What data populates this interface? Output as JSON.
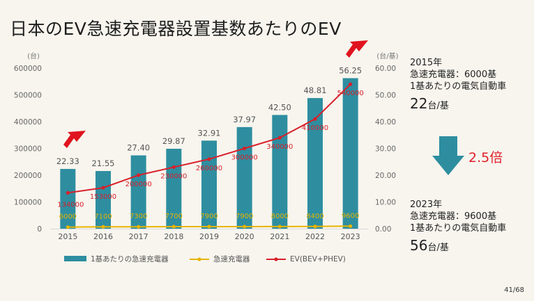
{
  "title": "日本のEV急速充電器設置基数あたりのEV",
  "chart_data": {
    "type": "bar",
    "categories": [
      "2015",
      "2016",
      "2017",
      "2018",
      "2019",
      "2020",
      "2021",
      "2022",
      "2023"
    ],
    "left_axis": {
      "unit": "(台)",
      "ylim": [
        0,
        600000
      ],
      "ticks": [
        "0",
        "100000",
        "200000",
        "300000",
        "400000",
        "500000",
        "600000"
      ]
    },
    "right_axis": {
      "unit": "(台/基)",
      "ylim": [
        0,
        60
      ],
      "ticks": [
        "0.00",
        "10.00",
        "20.00",
        "30.00",
        "40.00",
        "50.00",
        "60.00"
      ]
    },
    "series": [
      {
        "name": "1基あたりの急速充電器",
        "type": "bar",
        "axis": "right",
        "color": "#2e8ea0",
        "values": [
          22.33,
          21.55,
          27.4,
          29.87,
          32.91,
          37.97,
          42.5,
          48.81,
          56.25
        ],
        "labels": [
          "22.33",
          "21.55",
          "27.40",
          "29.87",
          "32.91",
          "37.97",
          "42.50",
          "48.81",
          "56.25"
        ]
      },
      {
        "name": "急速充電器",
        "type": "line",
        "axis": "left",
        "color": "#e8b400",
        "values": [
          6000,
          7100,
          7300,
          7700,
          7900,
          7900,
          8000,
          8400,
          9600
        ],
        "labels": [
          "6000",
          "7100",
          "7300",
          "7700",
          "7900",
          "7900",
          "8000",
          "8400",
          "9600"
        ]
      },
      {
        "name": "EV(BEV+PHEV)",
        "type": "line",
        "axis": "left",
        "color": "#d8202a",
        "values": [
          134000,
          153000,
          200000,
          230000,
          260000,
          300000,
          340000,
          410000,
          540000
        ],
        "labels": [
          "134000",
          "153000",
          "200000",
          "230000",
          "260000",
          "300000",
          "340000",
          "410000",
          "540000"
        ]
      }
    ],
    "legend_position": "bottom",
    "grid": false
  },
  "side": {
    "y2015": {
      "year": "2015年",
      "chargers": "急速充電器：6000基",
      "per_label": "1基あたりの電気自動車",
      "value": "22",
      "unit": "台/基"
    },
    "ratio": "2.5倍",
    "y2023": {
      "year": "2023年",
      "chargers": "急速充電器：9600基",
      "per_label": "1基あたりの電気自動車",
      "value": "56",
      "unit": "台/基"
    }
  },
  "colors": {
    "arrow_red": "#e0141e",
    "down_arrow": "#2e8ea0",
    "ratio_red": "#e0202a"
  },
  "page": "41/68"
}
